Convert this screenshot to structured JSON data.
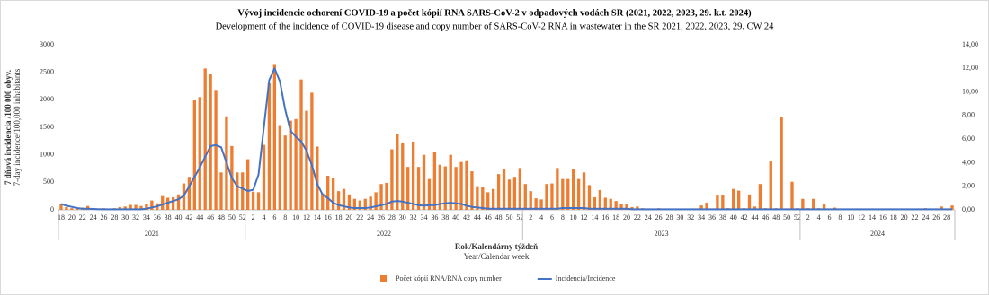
{
  "chart_data": {
    "type": "bar",
    "title": "Vývoj incidencie ochorení COVID-19 a počet kópií RNA  SARS-CoV-2 v odpadových vodách SR (2021, 2022, 2023, 29. k.t. 2024)",
    "subtitle": "Development of the incidence of COVID-19 disease and copy number of SARS-CoV-2 RNA  in wastewater in the SR 2021, 2022, 2023, 29. CW 24",
    "y_label": [
      "7 dňová incidencia /100 000 obyv.",
      "7-day incidence/100,000 inhabitants"
    ],
    "x_label": [
      "Rok/Kalendárny týždeň",
      "Year/Calendar week"
    ],
    "years": [
      "2021",
      "2022",
      "2023",
      "2024"
    ],
    "categories": [
      "18",
      null,
      "20",
      null,
      "22",
      null,
      "24",
      null,
      "26",
      null,
      "28",
      null,
      "30",
      null,
      "32",
      null,
      "34",
      null,
      "36",
      null,
      "38",
      null,
      "40",
      null,
      "42",
      null,
      "44",
      null,
      "46",
      null,
      "48",
      null,
      "50",
      null,
      "52",
      null,
      "2",
      null,
      "4",
      null,
      "6",
      null,
      "8",
      null,
      "10",
      null,
      "12",
      null,
      "14",
      null,
      "16",
      null,
      "18",
      null,
      "20",
      null,
      "22",
      null,
      "24",
      null,
      "26",
      null,
      "28",
      null,
      "30",
      null,
      "32",
      null,
      "34",
      null,
      "36",
      null,
      "38",
      null,
      "40",
      null,
      "42",
      null,
      "44",
      null,
      "46",
      null,
      "48",
      null,
      "50",
      null,
      "52",
      null,
      "2",
      null,
      "4",
      null,
      "6",
      null,
      "8",
      null,
      "10",
      null,
      "12",
      null,
      "14",
      null,
      "16",
      null,
      "18",
      null,
      "20",
      null,
      "22",
      null,
      "24",
      null,
      "26",
      null,
      "28",
      null,
      "30",
      null,
      "32",
      null,
      "34",
      null,
      "36",
      null,
      "38",
      null,
      "40",
      null,
      "42",
      null,
      "44",
      null,
      "46",
      null,
      "48",
      null,
      "50",
      null,
      "52",
      null,
      "2",
      null,
      "4",
      null,
      "6",
      null,
      "8",
      null,
      "10",
      null,
      "12",
      null,
      "14",
      null,
      "16",
      null,
      "18",
      null,
      "20",
      null,
      "22",
      null,
      "24",
      null,
      "26",
      null,
      "28",
      null
    ],
    "series": [
      {
        "name": "Počet kópií RNA/RNA copy number",
        "color": "#ed7d31",
        "values": [
          100,
          50,
          30,
          30,
          40,
          70,
          30,
          20,
          30,
          20,
          30,
          50,
          60,
          90,
          90,
          70,
          100,
          170,
          120,
          250,
          220,
          230,
          280,
          480,
          600,
          2000,
          2050,
          2570,
          2470,
          2180,
          680,
          1700,
          1160,
          680,
          680,
          920,
          330,
          320,
          1180,
          2300,
          2650,
          1540,
          1350,
          1620,
          1650,
          2370,
          1800,
          2130,
          1150,
          300,
          620,
          580,
          340,
          380,
          280,
          200,
          170,
          200,
          240,
          320,
          470,
          490,
          1100,
          1380,
          1220,
          780,
          1240,
          780,
          1000,
          560,
          1050,
          820,
          790,
          1000,
          780,
          870,
          900,
          700,
          430,
          420,
          320,
          380,
          650,
          750,
          550,
          600,
          760,
          470,
          340,
          210,
          190,
          470,
          480,
          760,
          560,
          560,
          740,
          560,
          680,
          450,
          230,
          360,
          220,
          200,
          160,
          100,
          100,
          50,
          60,
          30,
          20,
          20,
          30,
          20,
          10,
          20,
          20,
          20,
          10,
          10,
          80,
          130,
          20,
          260,
          270,
          30,
          380,
          350,
          30,
          280,
          60,
          470,
          30,
          880,
          30,
          1680,
          20,
          510,
          30,
          200,
          30,
          200,
          30,
          100,
          20,
          40,
          10,
          20,
          10,
          10,
          10,
          10,
          10,
          10,
          10,
          10,
          10,
          10,
          10,
          10,
          10,
          10,
          30,
          20,
          10,
          60,
          20,
          80
        ]
      },
      {
        "name": "Incidencia/Incidence",
        "color": "#4472c4",
        "type": "line",
        "axis": "y2",
        "values": [
          0.5,
          0.35,
          0.25,
          0.15,
          0.1,
          0.1,
          0.08,
          0.06,
          0.05,
          0.05,
          0.05,
          0.05,
          0.05,
          0.05,
          0.05,
          0.05,
          0.1,
          0.2,
          0.3,
          0.45,
          0.6,
          0.75,
          0.9,
          1.2,
          2.0,
          2.8,
          3.6,
          4.5,
          5.4,
          5.5,
          5.3,
          4.0,
          2.7,
          2.0,
          1.8,
          1.6,
          1.7,
          3.0,
          7.0,
          11.0,
          12.0,
          10.9,
          8.5,
          6.7,
          6.2,
          5.8,
          5.0,
          3.8,
          2.2,
          1.3,
          1.0,
          0.6,
          0.4,
          0.3,
          0.2,
          0.15,
          0.15,
          0.15,
          0.2,
          0.3,
          0.4,
          0.5,
          0.7,
          0.75,
          0.7,
          0.6,
          0.5,
          0.4,
          0.35,
          0.4,
          0.4,
          0.5,
          0.55,
          0.6,
          0.55,
          0.5,
          0.35,
          0.25,
          0.2,
          0.15,
          0.1,
          0.1,
          0.1,
          0.1,
          0.1,
          0.1,
          0.1,
          0.1,
          0.1,
          0.1,
          0.1,
          0.1,
          0.1,
          0.1,
          0.15,
          0.15,
          0.15,
          0.15,
          0.15,
          0.1,
          0.1,
          0.1,
          0.1,
          0.1,
          0.1,
          0.1,
          0.1,
          0.05,
          0.05,
          0.05,
          0.05,
          0.05,
          0.05,
          0.05,
          0.05,
          0.05,
          0.05,
          0.05,
          0.05,
          0.05,
          0.05,
          0.05,
          0.05,
          0.05,
          0.05,
          0.05,
          0.05,
          0.05,
          0.05,
          0.05,
          0.05,
          0.05,
          0.05,
          0.05,
          0.05,
          0.05,
          0.05,
          0.05,
          0.05,
          0.05,
          0.05,
          0.05,
          0.05,
          0.05,
          0.05,
          0.05,
          0.05,
          0.05,
          0.05,
          0.05,
          0.05,
          0.05,
          0.05,
          0.05,
          0.05,
          0.05,
          0.05,
          0.05,
          0.05,
          0.05,
          0.05,
          0.05,
          0.05,
          0.05,
          0.05,
          0.05,
          0.05,
          0.05
        ]
      }
    ],
    "ylim": [
      0,
      3000
    ],
    "yticks": [
      0,
      500,
      1000,
      1500,
      2000,
      2500,
      3000
    ],
    "y2lim": [
      0,
      14
    ],
    "y2ticks": [
      {
        "value": 0,
        "label": "0,00"
      },
      {
        "value": 2,
        "label": "2,00"
      },
      {
        "value": 4,
        "label": "4,00"
      },
      {
        "value": 6,
        "label": "6,00"
      },
      {
        "value": 8,
        "label": "8,00"
      },
      {
        "value": 10,
        "label": "10,00"
      },
      {
        "value": 12,
        "label": "12,00"
      },
      {
        "value": 14,
        "label": "14,00"
      }
    ],
    "grid": false,
    "legend": "bottom"
  }
}
